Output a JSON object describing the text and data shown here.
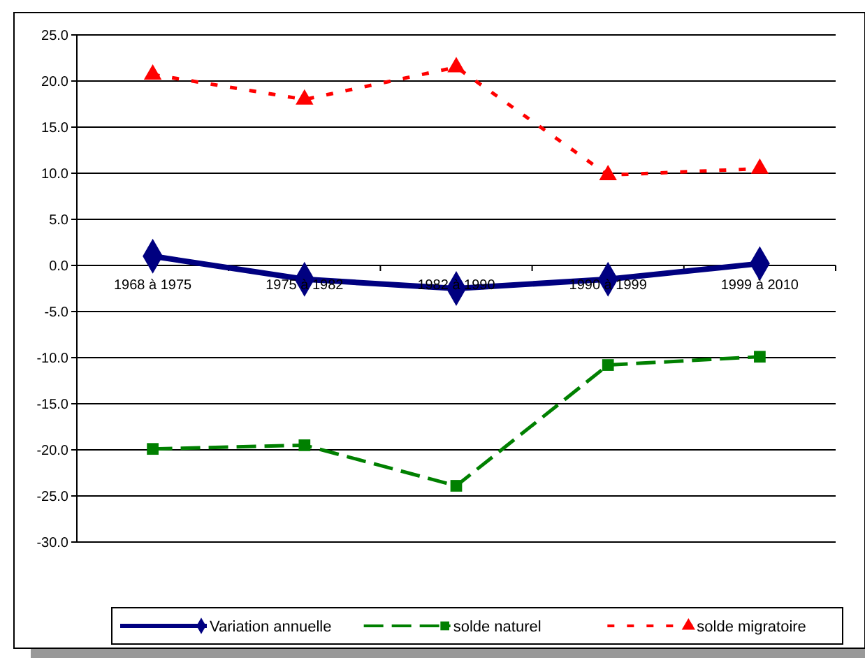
{
  "chart_data": {
    "type": "line",
    "categories": [
      "1968 à 1975",
      "1975 à 1982",
      "1982 à 1990",
      "1990 à 1999",
      "1999 à 2010"
    ],
    "series": [
      {
        "name": "Variation annuelle",
        "color": "#000080",
        "values": [
          1.0,
          -1.5,
          -2.5,
          -1.5,
          0.2
        ],
        "marker": "diamond",
        "line_style": "solid"
      },
      {
        "name": "solde naturel",
        "color": "#008000",
        "values": [
          -19.9,
          -19.5,
          -23.9,
          -10.8,
          -9.9
        ],
        "marker": "square",
        "line_style": "dashed"
      },
      {
        "name": "solde migratoire",
        "color": "#ff0000",
        "values": [
          20.7,
          18.0,
          21.5,
          9.8,
          10.5
        ],
        "marker": "triangle",
        "line_style": "dotted"
      }
    ],
    "ylim": [
      -30,
      25
    ],
    "yticks": [
      {
        "value": -30,
        "label": "-30.0"
      },
      {
        "value": -25,
        "label": "-25.0"
      },
      {
        "value": -20,
        "label": "-20.0"
      },
      {
        "value": -15,
        "label": "-15.0"
      },
      {
        "value": -10,
        "label": "-10.0"
      },
      {
        "value": -5,
        "label": "-5.0"
      },
      {
        "value": 0,
        "label": "0.0"
      },
      {
        "value": 5,
        "label": "5.0"
      },
      {
        "value": 10,
        "label": "10.0"
      },
      {
        "value": 15,
        "label": "15.0"
      },
      {
        "value": 20,
        "label": "20.0"
      },
      {
        "value": 25,
        "label": "25.0"
      }
    ],
    "grid": "y",
    "legend": "bottom"
  }
}
